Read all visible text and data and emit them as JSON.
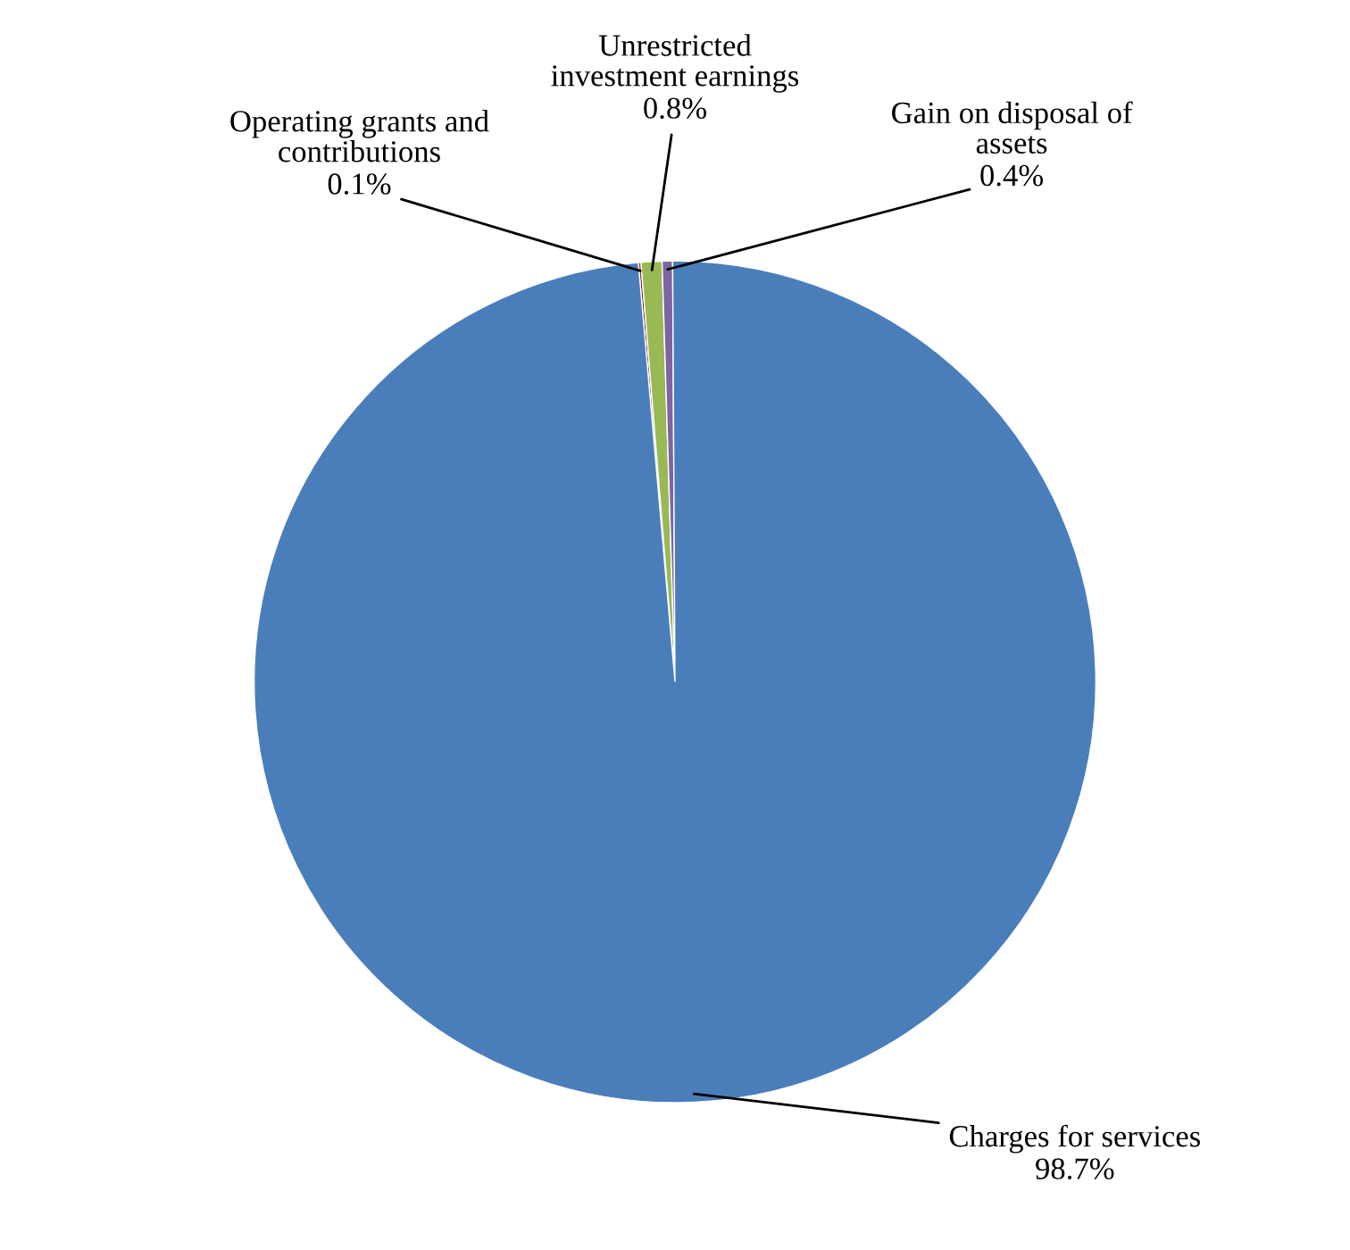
{
  "chart_data": {
    "type": "pie",
    "categories": [
      "Operating grants and\ncontributions",
      "Unrestricted\ninvestment earnings",
      "Gain on disposal of\nassets",
      "Charges for services"
    ],
    "values": [
      0.1,
      0.8,
      0.4,
      98.7
    ],
    "value_labels": [
      "0.1%",
      "0.8%",
      "0.4%",
      "98.7%"
    ],
    "colors": [
      "#8b2a25",
      "#98b954",
      "#7e64a2",
      "#4a7ebb"
    ]
  }
}
